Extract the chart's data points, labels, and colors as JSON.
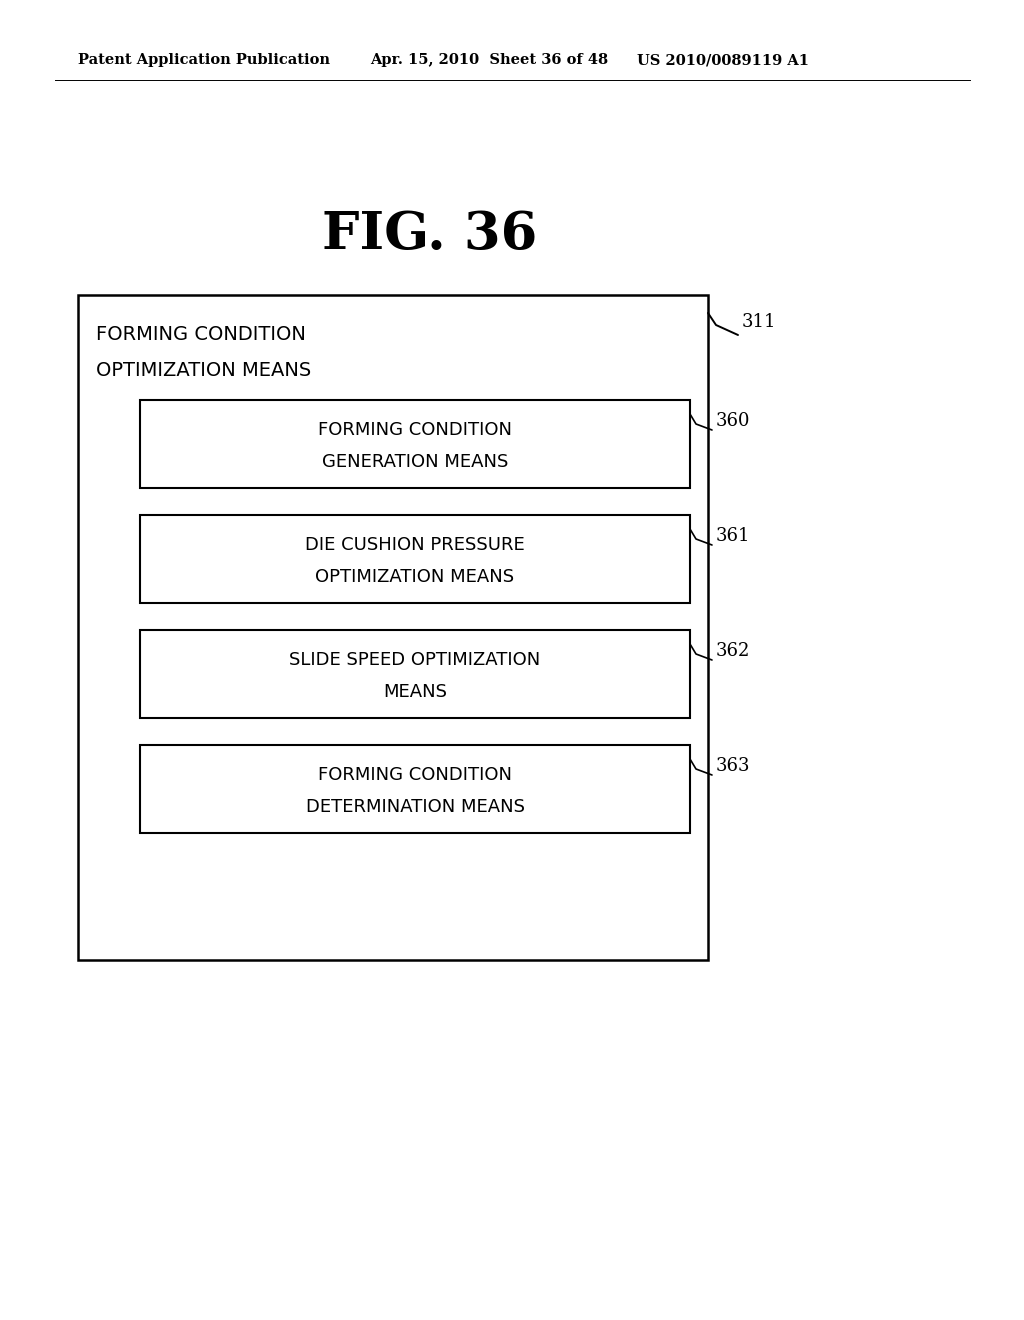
{
  "bg_color": "#ffffff",
  "header_text": "Patent Application Publication",
  "header_date": "Apr. 15, 2010  Sheet 36 of 48",
  "header_patent": "US 2010/0089119 A1",
  "figure_title": "FIG. 36",
  "outer_box_label": "311",
  "outer_box_title_line1": "FORMING CONDITION",
  "outer_box_title_line2": "OPTIMIZATION MEANS",
  "boxes": [
    {
      "label": "360",
      "line1": "FORMING CONDITION",
      "line2": "GENERATION MEANS"
    },
    {
      "label": "361",
      "line1": "DIE CUSHION PRESSURE",
      "line2": "OPTIMIZATION MEANS"
    },
    {
      "label": "362",
      "line1": "SLIDE SPEED OPTIMIZATION",
      "line2": "MEANS"
    },
    {
      "label": "363",
      "line1": "FORMING CONDITION",
      "line2": "DETERMINATION MEANS"
    }
  ],
  "header_fontsize": 10.5,
  "title_fontsize": 38,
  "outer_title_fontsize": 14,
  "inner_text_fontsize": 13,
  "label_fontsize": 13
}
